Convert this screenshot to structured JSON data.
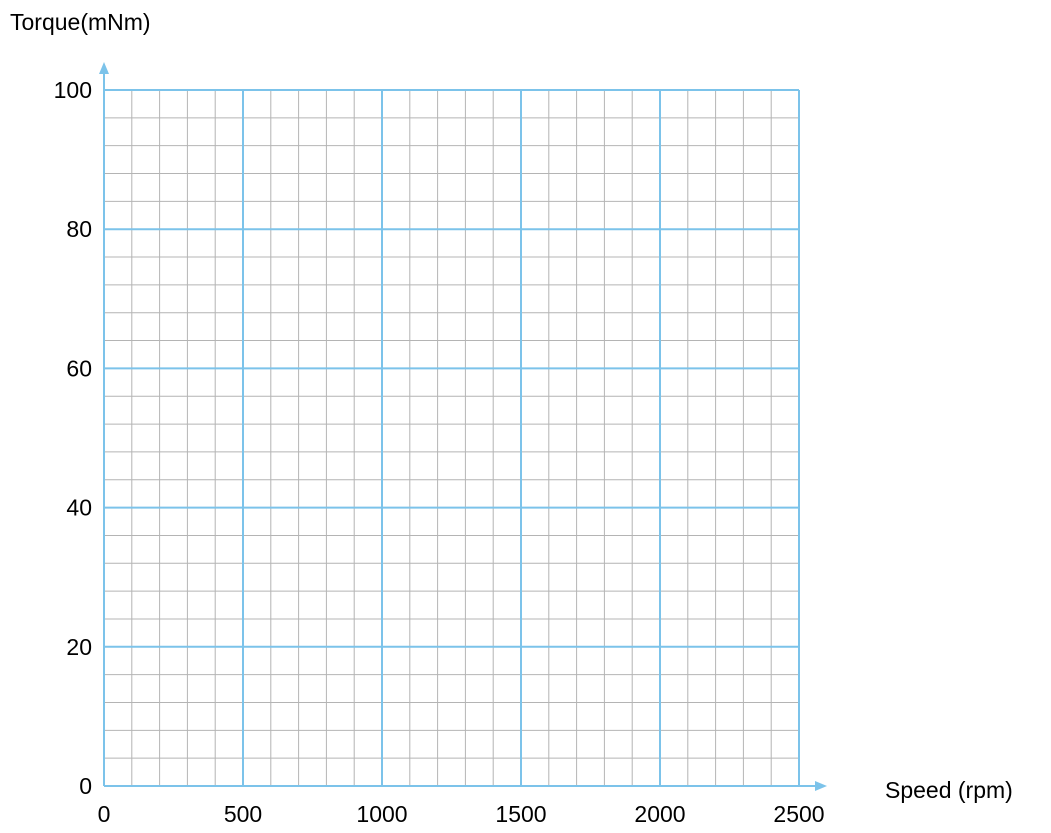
{
  "chart_data": {
    "type": "line",
    "title": "",
    "xlabel": "Speed (rpm)",
    "ylabel": "Torque(mNm)",
    "xlim": [
      0,
      2500
    ],
    "ylim": [
      0,
      100
    ],
    "x_ticks": [
      "0",
      "500",
      "1000",
      "1500",
      "2000",
      "2500"
    ],
    "y_ticks": [
      "0",
      "20",
      "40",
      "60",
      "80",
      "100"
    ],
    "x_major_step": 500,
    "x_minor_step": 100,
    "y_major_step": 20,
    "y_minor_step": 4,
    "grid": true,
    "series": [],
    "colors": {
      "major_grid": "#7cc3ea",
      "minor_grid": "#b4b4b4",
      "axis": "#7cc3ea"
    }
  }
}
